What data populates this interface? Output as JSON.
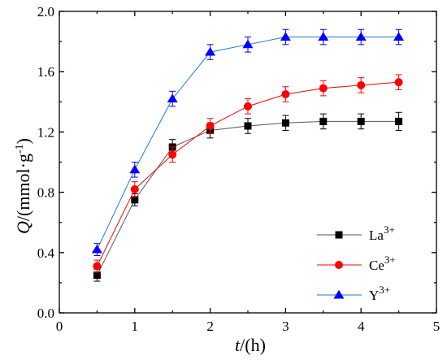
{
  "chart_data": {
    "type": "line",
    "x": [
      0.5,
      1.0,
      1.5,
      2.0,
      2.5,
      3.0,
      3.5,
      4.0,
      4.5
    ],
    "xlim": [
      0,
      5
    ],
    "ylim": [
      0.0,
      2.0
    ],
    "xticks": [
      0,
      1,
      2,
      3,
      4,
      5
    ],
    "yticks": [
      0.0,
      0.4,
      0.8,
      1.2,
      1.6,
      2.0
    ],
    "xtick_labels": [
      "0",
      "1",
      "2",
      "3",
      "4",
      "5"
    ],
    "ytick_labels": [
      "0.0",
      "0.4",
      "0.8",
      "1.2",
      "1.6",
      "2.0"
    ],
    "xlabel": {
      "var": "t",
      "rest": "/(h)"
    },
    "ylabel": {
      "var": "Q",
      "rest": "/(mmol·g",
      "sup": "-1",
      "close": ")"
    },
    "legend_position": "bottom-right",
    "grid": false,
    "series": [
      {
        "name": "La",
        "name_sup": "3+",
        "color": "#000000",
        "line_color": "#555555",
        "marker": "square",
        "values": [
          0.25,
          0.75,
          1.1,
          1.21,
          1.24,
          1.26,
          1.27,
          1.27,
          1.27
        ],
        "errors": [
          0.04,
          0.04,
          0.05,
          0.05,
          0.05,
          0.05,
          0.05,
          0.05,
          0.06
        ]
      },
      {
        "name": "Ce",
        "name_sup": "3+",
        "color": "#ff0000",
        "line_color": "#ff0000",
        "marker": "circle",
        "values": [
          0.31,
          0.82,
          1.05,
          1.24,
          1.37,
          1.45,
          1.49,
          1.51,
          1.53
        ],
        "errors": [
          0.04,
          0.05,
          0.05,
          0.05,
          0.05,
          0.05,
          0.05,
          0.05,
          0.05
        ]
      },
      {
        "name": "Y",
        "name_sup": "3+",
        "color": "#0000ff",
        "line_color": "#1e78d2",
        "marker": "triangle",
        "values": [
          0.42,
          0.95,
          1.42,
          1.73,
          1.78,
          1.83,
          1.83,
          1.83,
          1.83
        ],
        "errors": [
          0.04,
          0.05,
          0.05,
          0.05,
          0.05,
          0.05,
          0.05,
          0.05,
          0.05
        ]
      }
    ]
  }
}
